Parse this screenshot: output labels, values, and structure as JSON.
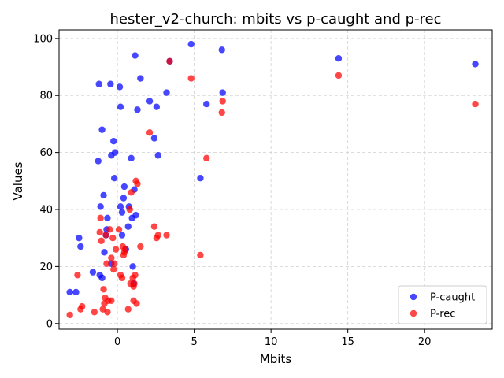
{
  "chart_data": {
    "type": "scatter",
    "title": "hester_v2-church: mbits vs p-caught and p-rec",
    "xlabel": "Mbits",
    "ylabel": "Values",
    "xlim": [
      -3.8,
      24.4
    ],
    "ylim": [
      -2,
      103
    ],
    "xticks": [
      0,
      5,
      10,
      15,
      20
    ],
    "yticks": [
      0,
      20,
      40,
      60,
      80,
      100
    ],
    "grid": true,
    "legend_position": "lower-right",
    "series": [
      {
        "name": "P-caught",
        "color": "#0000ff",
        "points": [
          [
            -3.1,
            11
          ],
          [
            -2.7,
            11
          ],
          [
            -2.5,
            30
          ],
          [
            -2.4,
            27
          ],
          [
            -1.6,
            18
          ],
          [
            -1.2,
            84
          ],
          [
            -1.25,
            57
          ],
          [
            -1.1,
            41
          ],
          [
            -1.15,
            17
          ],
          [
            -1.0,
            68
          ],
          [
            -1.0,
            16
          ],
          [
            -0.9,
            45
          ],
          [
            -0.85,
            25
          ],
          [
            -0.75,
            31
          ],
          [
            -0.7,
            33
          ],
          [
            -0.65,
            37
          ],
          [
            -0.45,
            84
          ],
          [
            -0.4,
            21
          ],
          [
            -0.4,
            59
          ],
          [
            -0.25,
            64
          ],
          [
            -0.2,
            51
          ],
          [
            -0.15,
            60
          ],
          [
            0.15,
            83
          ],
          [
            0.2,
            76
          ],
          [
            0.2,
            41
          ],
          [
            0.3,
            31
          ],
          [
            0.3,
            39
          ],
          [
            0.4,
            44
          ],
          [
            0.45,
            48
          ],
          [
            0.55,
            26
          ],
          [
            0.7,
            34
          ],
          [
            0.75,
            41
          ],
          [
            0.9,
            58
          ],
          [
            0.95,
            37
          ],
          [
            1.0,
            20
          ],
          [
            1.05,
            14
          ],
          [
            1.1,
            47
          ],
          [
            1.15,
            94
          ],
          [
            1.2,
            38
          ],
          [
            1.3,
            75
          ],
          [
            1.5,
            86
          ],
          [
            2.1,
            78
          ],
          [
            2.4,
            65
          ],
          [
            2.55,
            76
          ],
          [
            2.65,
            59
          ],
          [
            3.2,
            81
          ],
          [
            3.4,
            92
          ],
          [
            4.8,
            98
          ],
          [
            5.4,
            51
          ],
          [
            5.8,
            77
          ],
          [
            6.8,
            96
          ],
          [
            6.85,
            81
          ],
          [
            14.4,
            93
          ],
          [
            23.3,
            91
          ]
        ]
      },
      {
        "name": "P-rec",
        "color": "#ff0000",
        "points": [
          [
            -3.1,
            3
          ],
          [
            -2.6,
            17
          ],
          [
            -2.4,
            5
          ],
          [
            -2.3,
            6
          ],
          [
            -1.5,
            4
          ],
          [
            -1.15,
            32
          ],
          [
            -1.1,
            37
          ],
          [
            -1.05,
            29
          ],
          [
            -0.95,
            5
          ],
          [
            -0.9,
            12
          ],
          [
            -0.85,
            7
          ],
          [
            -0.8,
            9
          ],
          [
            -0.75,
            31
          ],
          [
            -0.7,
            21
          ],
          [
            -0.65,
            4
          ],
          [
            -0.6,
            8
          ],
          [
            -0.5,
            33
          ],
          [
            -0.4,
            8
          ],
          [
            -0.4,
            23
          ],
          [
            -0.3,
            30
          ],
          [
            -0.25,
            19
          ],
          [
            -0.2,
            21
          ],
          [
            -0.1,
            26
          ],
          [
            0.1,
            33
          ],
          [
            0.2,
            17
          ],
          [
            0.3,
            16
          ],
          [
            0.35,
            27
          ],
          [
            0.4,
            24
          ],
          [
            0.45,
            25
          ],
          [
            0.5,
            26
          ],
          [
            0.7,
            5
          ],
          [
            0.8,
            40
          ],
          [
            0.85,
            14
          ],
          [
            0.9,
            46
          ],
          [
            1.0,
            16
          ],
          [
            1.05,
            8
          ],
          [
            1.05,
            13
          ],
          [
            1.1,
            14
          ],
          [
            1.15,
            17
          ],
          [
            1.2,
            50
          ],
          [
            1.25,
            7
          ],
          [
            1.3,
            49
          ],
          [
            1.5,
            27
          ],
          [
            2.1,
            67
          ],
          [
            2.4,
            34
          ],
          [
            2.55,
            30
          ],
          [
            2.65,
            31
          ],
          [
            3.2,
            31
          ],
          [
            3.4,
            92
          ],
          [
            4.8,
            86
          ],
          [
            5.4,
            24
          ],
          [
            5.8,
            58
          ],
          [
            6.85,
            78
          ],
          [
            6.8,
            74
          ],
          [
            14.4,
            87
          ],
          [
            23.3,
            77
          ]
        ]
      }
    ]
  }
}
